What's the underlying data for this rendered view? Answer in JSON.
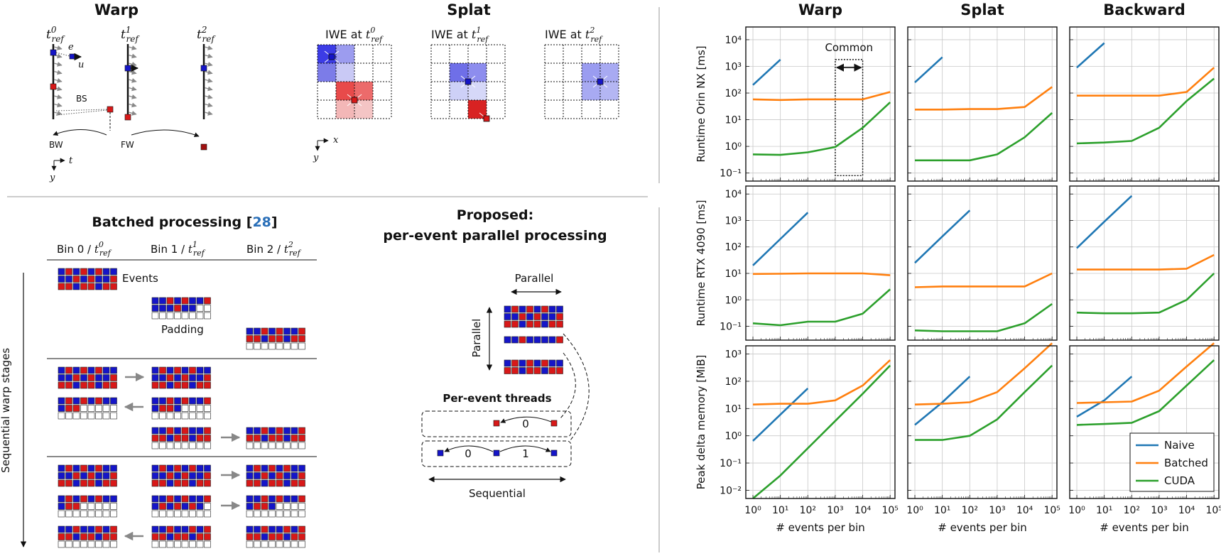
{
  "warp_panel": {
    "title": "Warp",
    "tref0": "t",
    "tref1": "t",
    "tref2": "t",
    "sup0": "0",
    "sup1": "1",
    "sup2": "2",
    "sub": "ref",
    "e": "e",
    "u": "u",
    "bs": "BS",
    "bw": "BW",
    "fw": "FW",
    "axis_t": "t",
    "axis_y": "y"
  },
  "splat_panel": {
    "title": "Splat",
    "iwe_prefix": "IWE at ",
    "axis_x": "x",
    "axis_y": "y"
  },
  "batched": {
    "title": "Batched processing [",
    "cite": "28",
    "title_end": "]",
    "bin0": "Bin 0 / ",
    "bin1": "Bin 1 / ",
    "bin2": "Bin 2 / ",
    "events_label": "Events",
    "padding_label": "Padding",
    "stages_label": "Sequential warp stages"
  },
  "proposed": {
    "title_line1": "Proposed:",
    "title_line2": "per-event parallel processing",
    "parallel_h": "Parallel",
    "parallel_v": "Parallel",
    "threads_label": "Per-event threads",
    "arc0": "0",
    "arc0b": "0",
    "arc1": "1",
    "sequential": "Sequential"
  },
  "colors": {
    "blue": "#1515c8",
    "red": "#d81818",
    "naive": "#1f77b4",
    "batched": "#ff7f0e",
    "cuda": "#2ca02c"
  },
  "chart_data": {
    "type": "line",
    "x_label": "# events per bin",
    "x_ticks": [
      "10^0",
      "10^1",
      "10^2",
      "10^3",
      "10^4",
      "10^5"
    ],
    "columns": [
      "Warp",
      "Splat",
      "Backward"
    ],
    "rows": [
      "Runtime Orin NX [ms]",
      "Runtime RTX 4090 [ms]",
      "Peak delta memory [MiB]"
    ],
    "legend": [
      "Naive",
      "Batched",
      "CUDA"
    ],
    "annotation": "Common",
    "panels": [
      {
        "row": 0,
        "col": 0,
        "ylim": [
          0.05,
          30000
        ],
        "y_ticks": [
          "10^-1",
          "10^0",
          "10^1",
          "10^2",
          "10^3",
          "10^4"
        ],
        "series": [
          {
            "name": "Naive",
            "x": [
              1,
              10
            ],
            "y": [
              200,
              1800
            ]
          },
          {
            "name": "Batched",
            "x": [
              1,
              10,
              100,
              1000,
              10000,
              100000
            ],
            "y": [
              58,
              55,
              58,
              58,
              58,
              110
            ]
          },
          {
            "name": "CUDA",
            "x": [
              1,
              10,
              100,
              1000,
              10000,
              100000
            ],
            "y": [
              0.5,
              0.48,
              0.6,
              0.95,
              5,
              45
            ]
          }
        ]
      },
      {
        "row": 0,
        "col": 1,
        "ylim": [
          0.05,
          30000
        ],
        "y_ticks": [],
        "series": [
          {
            "name": "Naive",
            "x": [
              1,
              10
            ],
            "y": [
              250,
              2200
            ]
          },
          {
            "name": "Batched",
            "x": [
              1,
              10,
              100,
              1000,
              10000,
              100000
            ],
            "y": [
              24,
              24,
              25,
              25,
              30,
              170
            ]
          },
          {
            "name": "CUDA",
            "x": [
              1,
              10,
              100,
              1000,
              10000,
              100000
            ],
            "y": [
              0.3,
              0.3,
              0.3,
              0.5,
              2.2,
              18
            ]
          }
        ]
      },
      {
        "row": 0,
        "col": 2,
        "ylim": [
          0.05,
          30000
        ],
        "y_ticks": [],
        "series": [
          {
            "name": "Naive",
            "x": [
              1,
              10
            ],
            "y": [
              900,
              7500
            ]
          },
          {
            "name": "Batched",
            "x": [
              1,
              10,
              100,
              1000,
              10000,
              100000
            ],
            "y": [
              80,
              80,
              80,
              80,
              110,
              900
            ]
          },
          {
            "name": "CUDA",
            "x": [
              1,
              10,
              100,
              1000,
              10000,
              100000
            ],
            "y": [
              1.3,
              1.4,
              1.6,
              5,
              50,
              350
            ]
          }
        ]
      },
      {
        "row": 1,
        "col": 0,
        "ylim": [
          0.03,
          20000
        ],
        "y_ticks": [
          "10^-1",
          "10^0",
          "10^1",
          "10^2",
          "10^3",
          "10^4"
        ],
        "series": [
          {
            "name": "Naive",
            "x": [
              1,
              10,
              100
            ],
            "y": [
              20,
              200,
              2000
            ]
          },
          {
            "name": "Batched",
            "x": [
              1,
              10,
              100,
              1000,
              10000,
              100000
            ],
            "y": [
              9.5,
              9.7,
              10,
              10,
              10,
              8.5
            ]
          },
          {
            "name": "CUDA",
            "x": [
              1,
              10,
              100,
              1000,
              10000,
              100000
            ],
            "y": [
              0.13,
              0.11,
              0.15,
              0.15,
              0.3,
              2.5
            ]
          }
        ]
      },
      {
        "row": 1,
        "col": 1,
        "ylim": [
          0.03,
          20000
        ],
        "y_ticks": [],
        "series": [
          {
            "name": "Naive",
            "x": [
              1,
              10,
              100
            ],
            "y": [
              25,
              250,
              2400
            ]
          },
          {
            "name": "Batched",
            "x": [
              1,
              10,
              100,
              1000,
              10000,
              100000
            ],
            "y": [
              3,
              3.2,
              3.2,
              3.2,
              3.2,
              10
            ]
          },
          {
            "name": "CUDA",
            "x": [
              1,
              10,
              100,
              1000,
              10000,
              100000
            ],
            "y": [
              0.07,
              0.065,
              0.065,
              0.065,
              0.13,
              0.7
            ]
          }
        ]
      },
      {
        "row": 1,
        "col": 2,
        "ylim": [
          0.03,
          20000
        ],
        "y_ticks": [],
        "series": [
          {
            "name": "Naive",
            "x": [
              1,
              10,
              100
            ],
            "y": [
              90,
              900,
              8500
            ]
          },
          {
            "name": "Batched",
            "x": [
              1,
              10,
              100,
              1000,
              10000,
              100000
            ],
            "y": [
              14,
              14,
              14,
              14,
              15,
              50
            ]
          },
          {
            "name": "CUDA",
            "x": [
              1,
              10,
              100,
              1000,
              10000,
              100000
            ],
            "y": [
              0.33,
              0.31,
              0.31,
              0.33,
              1,
              10
            ]
          }
        ]
      },
      {
        "row": 2,
        "col": 0,
        "ylim": [
          0.005,
          2000
        ],
        "y_ticks": [
          "10^-2",
          "10^-1",
          "10^0",
          "10^1",
          "10^2",
          "10^3"
        ],
        "series": [
          {
            "name": "Naive",
            "x": [
              1,
              10,
              100
            ],
            "y": [
              0.65,
              6,
              55
            ]
          },
          {
            "name": "Batched",
            "x": [
              1,
              10,
              100,
              1000,
              10000,
              100000
            ],
            "y": [
              14,
              15,
              15,
              20,
              70,
              600
            ]
          },
          {
            "name": "CUDA",
            "x": [
              1,
              10,
              100,
              1000,
              10000,
              100000
            ],
            "y": [
              0.005,
              0.035,
              0.35,
              3.5,
              35,
              380
            ]
          }
        ]
      },
      {
        "row": 2,
        "col": 1,
        "ylim": [
          0.005,
          2000
        ],
        "y_ticks": [],
        "series": [
          {
            "name": "Naive",
            "x": [
              1,
              10,
              100
            ],
            "y": [
              2.5,
              17,
              150
            ]
          },
          {
            "name": "Batched",
            "x": [
              1,
              10,
              100,
              1000,
              10000,
              100000
            ],
            "y": [
              14,
              15,
              17,
              40,
              300,
              2500
            ]
          },
          {
            "name": "CUDA",
            "x": [
              1,
              10,
              100,
              1000,
              10000,
              100000
            ],
            "y": [
              0.7,
              0.7,
              1,
              4,
              40,
              380
            ]
          }
        ]
      },
      {
        "row": 2,
        "col": 2,
        "ylim": [
          0.005,
          2000
        ],
        "y_ticks": [],
        "series": [
          {
            "name": "Naive",
            "x": [
              1,
              10,
              100
            ],
            "y": [
              5,
              20,
              150
            ]
          },
          {
            "name": "Batched",
            "x": [
              1,
              10,
              100,
              1000,
              10000,
              100000
            ],
            "y": [
              16,
              17,
              18,
              45,
              350,
              2500
            ]
          },
          {
            "name": "CUDA",
            "x": [
              1,
              10,
              100,
              1000,
              10000,
              100000
            ],
            "y": [
              2.5,
              2.7,
              3,
              8,
              70,
              600
            ]
          }
        ]
      }
    ]
  }
}
